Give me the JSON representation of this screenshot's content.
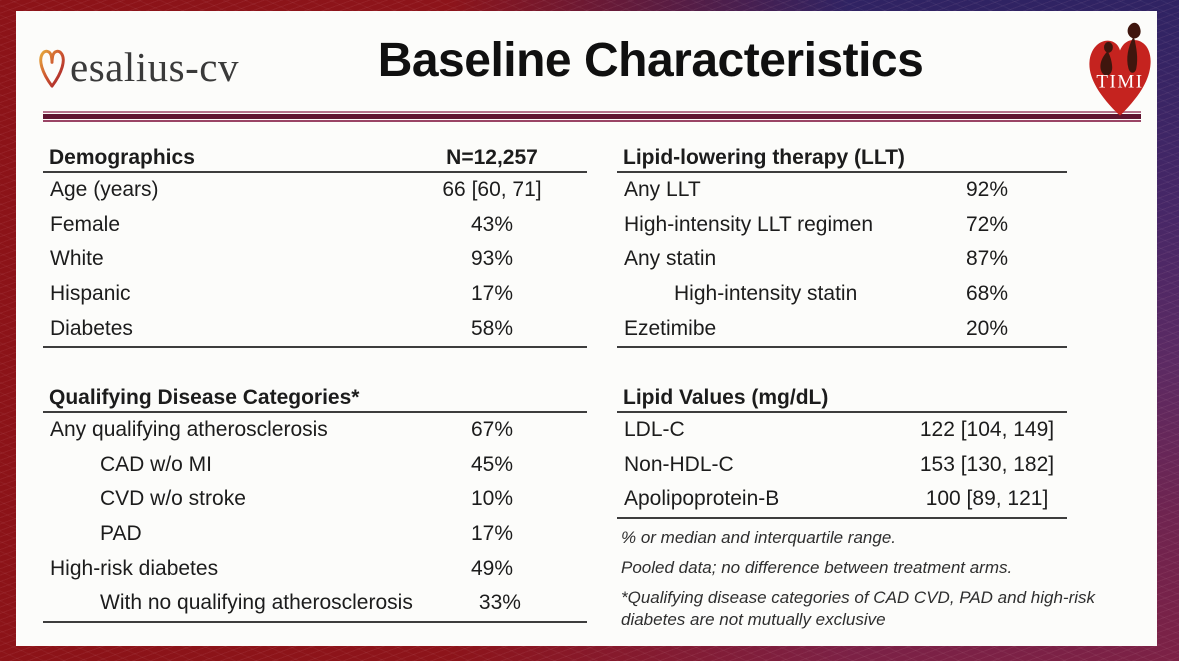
{
  "header": {
    "logo_text": "esalius-cv",
    "title": "Baseline Characteristics",
    "timi_label": "TIMI"
  },
  "tables": {
    "demographics": {
      "header_label": "Demographics",
      "header_value": "N=12,257",
      "rows": [
        {
          "label": "Age (years)",
          "value": "66 [60, 71]",
          "indent": 0
        },
        {
          "label": "Female",
          "value": "43%",
          "indent": 0
        },
        {
          "label": "White",
          "value": "93%",
          "indent": 0
        },
        {
          "label": "Hispanic",
          "value": "17%",
          "indent": 0
        },
        {
          "label": "Diabetes",
          "value": "58%",
          "indent": 0
        }
      ]
    },
    "llt": {
      "header_label": "Lipid-lowering therapy (LLT)",
      "header_value": "",
      "rows": [
        {
          "label": "Any LLT",
          "value": "92%",
          "indent": 0
        },
        {
          "label": "High-intensity LLT regimen",
          "value": "72%",
          "indent": 0
        },
        {
          "label": "Any statin",
          "value": "87%",
          "indent": 0
        },
        {
          "label": "High-intensity statin",
          "value": "68%",
          "indent": 1
        },
        {
          "label": "Ezetimibe",
          "value": "20%",
          "indent": 0
        }
      ]
    },
    "qualifying": {
      "header_label": "Qualifying Disease Categories*",
      "header_value": "",
      "rows": [
        {
          "label": "Any qualifying atherosclerosis",
          "value": "67%",
          "indent": 0
        },
        {
          "label": "CAD w/o MI",
          "value": "45%",
          "indent": 1
        },
        {
          "label": "CVD w/o stroke",
          "value": "10%",
          "indent": 1
        },
        {
          "label": "PAD",
          "value": "17%",
          "indent": 1
        },
        {
          "label": "High-risk diabetes",
          "value": "49%",
          "indent": 0
        },
        {
          "label": "With no qualifying atherosclerosis",
          "value": "33%",
          "indent": 1
        }
      ]
    },
    "lipid": {
      "header_label": "Lipid Values (mg/dL)",
      "header_value": "",
      "rows": [
        {
          "label": "LDL-C",
          "value": "122 [104, 149]",
          "indent": 0
        },
        {
          "label": "Non-HDL-C",
          "value": "153 [130, 182]",
          "indent": 0
        },
        {
          "label": "Apolipoprotein-B",
          "value": "100 [89, 121]",
          "indent": 0
        }
      ]
    }
  },
  "footnotes": [
    "% or median and interquartile range.",
    "Pooled data; no difference between treatment arms.",
    "*Qualifying disease categories of CAD CVD, PAD and high-risk diabetes are not mutually exclusive"
  ],
  "colors": {
    "rule_accent": "#5f1430",
    "table_line": "#3d3d3d",
    "bg_left_red": "#8c1318",
    "bg_right_purple": "#5c2a63",
    "bg_top_right_blue": "#2f2363",
    "timi_heart_red": "#c5231f",
    "vesalius_gold": "#e6a93c",
    "vesalius_red": "#a21a2a"
  }
}
